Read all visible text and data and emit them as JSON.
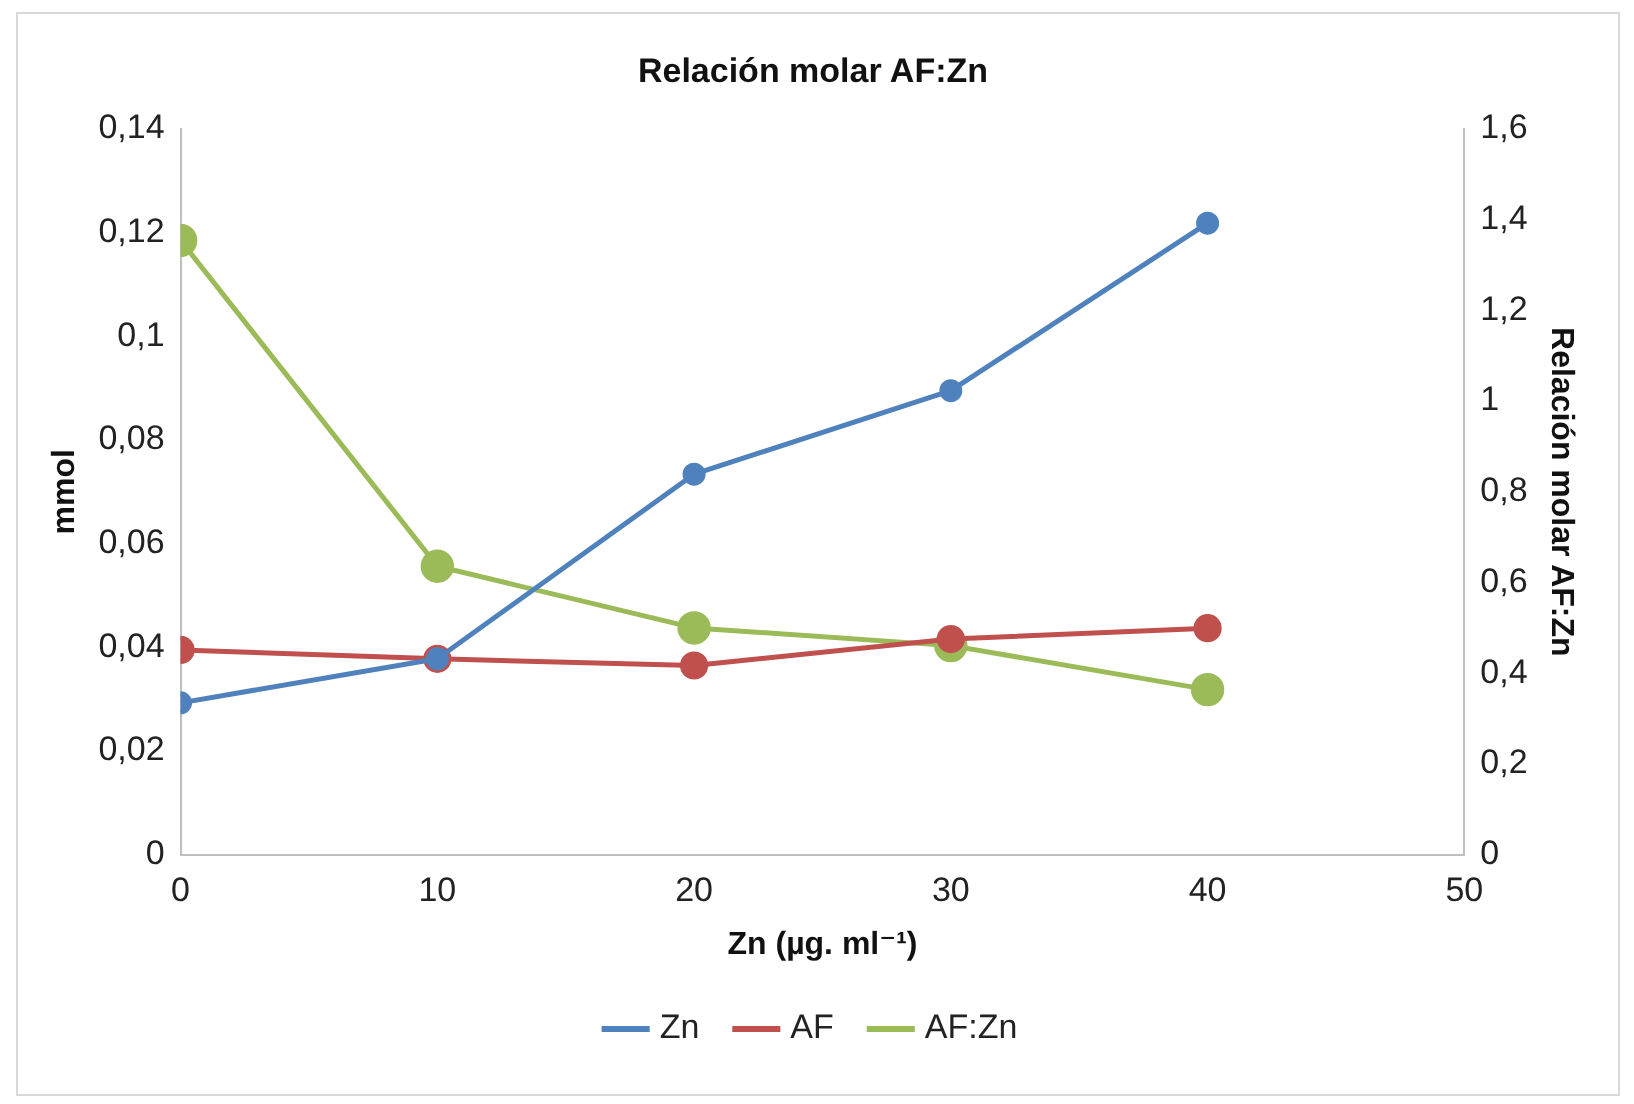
{
  "chart_data": {
    "type": "line",
    "title": "Relación molar AF:Zn",
    "xlabel": "Zn (µg. ml⁻¹)",
    "ylabel": "mmol",
    "y2label": "Relación molar AF:Zn",
    "x": [
      0,
      10,
      20,
      30,
      40
    ],
    "series": [
      {
        "name": "Zn",
        "color": "#4f81bd",
        "values": [
          0.0293,
          0.0378,
          0.0734,
          0.0895,
          0.1218
        ]
      },
      {
        "name": "AF",
        "color": "#c0504d",
        "values": [
          0.0395,
          0.0378,
          0.0365,
          0.0416,
          0.0437
        ]
      },
      {
        "name": "AF:Zn",
        "color": "#9bbb59",
        "axis": "y2",
        "values": [
          1.354,
          0.636,
          0.5,
          0.461,
          0.364
        ]
      }
    ],
    "xlim": [
      0,
      50
    ],
    "xticks": [
      0,
      10,
      20,
      30,
      40,
      50
    ],
    "ylim": [
      0,
      0.14
    ],
    "yticks": [
      0,
      {
        "value": 0.02,
        "label": "0,02"
      },
      {
        "value": 0.04,
        "label": "0,04"
      },
      {
        "value": 0.06,
        "label": "0,06"
      },
      {
        "value": 0.08,
        "label": "0,08"
      },
      {
        "value": 0.1,
        "label": "0,1"
      },
      {
        "value": 0.12,
        "label": "0,12"
      },
      {
        "value": 0.14,
        "label": "0,14"
      }
    ],
    "y2lim": [
      0,
      1.6
    ],
    "y2ticks": [
      0,
      {
        "value": 0.2,
        "label": "0,2"
      },
      {
        "value": 0.4,
        "label": "0,4"
      },
      {
        "value": 0.6,
        "label": "0,6"
      },
      {
        "value": 0.8,
        "label": "0,8"
      },
      1,
      {
        "value": 1.2,
        "label": "1,2"
      },
      {
        "value": 1.4,
        "label": "1,4"
      },
      {
        "value": 1.6,
        "label": "1,6"
      }
    ],
    "grid": false,
    "legend": "bottom",
    "marker": "circle",
    "line_style": "solid"
  }
}
